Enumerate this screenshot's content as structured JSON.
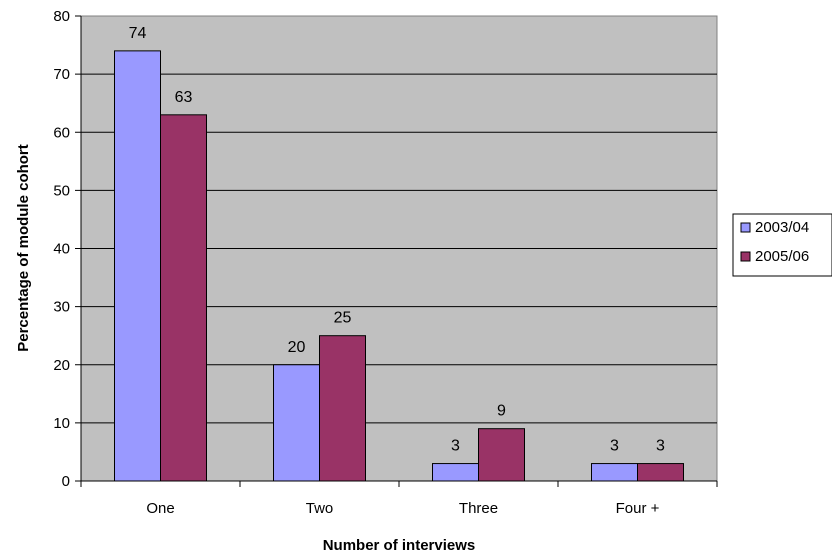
{
  "chart_data": {
    "type": "bar",
    "categories": [
      "One",
      "Two",
      "Three",
      "Four +"
    ],
    "series": [
      {
        "name": "2003/04",
        "values": [
          74,
          20,
          3,
          3
        ],
        "color": "#9999ff"
      },
      {
        "name": "2005/06",
        "values": [
          63,
          25,
          9,
          3
        ],
        "color": "#993366"
      }
    ],
    "title": "",
    "xlabel": "Number of interviews",
    "ylabel": "Percentage of module cohort",
    "ylim": [
      0,
      80
    ],
    "yticks": [
      0,
      10,
      20,
      30,
      40,
      50,
      60,
      70,
      80
    ],
    "grid": true,
    "legend_position": "right",
    "plot_background": "#c0c0c0"
  }
}
